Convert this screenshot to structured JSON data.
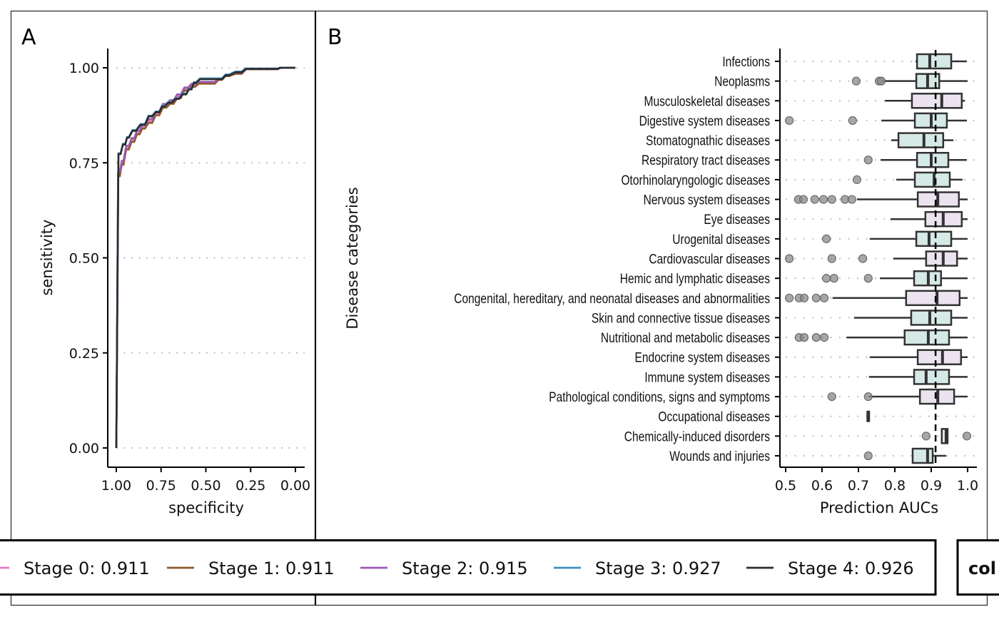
{
  "chart_data": [
    {
      "panel": "A",
      "type": "line",
      "title": "",
      "xlabel": "specificity",
      "ylabel": "sensitivity",
      "xlim": [
        1.0,
        0.0
      ],
      "ylim": [
        0.0,
        1.0
      ],
      "x_reversed": true,
      "xticks": [
        "1.00",
        "0.75",
        "0.50",
        "0.25",
        "0.00"
      ],
      "xtick_values": [
        1.0,
        0.75,
        0.5,
        0.25,
        0.0
      ],
      "yticks": [
        "0.00",
        "0.25",
        "0.50",
        "0.75",
        "1.00"
      ],
      "ytick_values": [
        0.0,
        0.25,
        0.5,
        0.75,
        1.0
      ],
      "grid": "horizontal-dotted",
      "series": [
        {
          "name": "Stage 0: 0.911",
          "color": "#e377c2",
          "specificity": [
            1.0,
            0.98,
            0.96,
            0.93,
            0.9,
            0.87,
            0.84,
            0.8,
            0.76,
            0.72,
            0.68,
            0.64,
            0.6,
            0.56,
            0.52,
            0.45,
            0.41,
            0.37,
            0.3,
            0.25,
            0.1,
            0.06,
            0.0
          ],
          "sensitivity": [
            0.0,
            0.72,
            0.75,
            0.79,
            0.81,
            0.83,
            0.845,
            0.86,
            0.88,
            0.9,
            0.91,
            0.925,
            0.945,
            0.955,
            0.96,
            0.96,
            0.97,
            0.98,
            0.985,
            0.996,
            0.996,
            1.0,
            1.0
          ]
        },
        {
          "name": "Stage 1: 0.911",
          "color": "#8c5a2b",
          "specificity": [
            1.0,
            0.98,
            0.96,
            0.93,
            0.9,
            0.87,
            0.84,
            0.8,
            0.76,
            0.72,
            0.68,
            0.64,
            0.6,
            0.56,
            0.52,
            0.45,
            0.41,
            0.37,
            0.3,
            0.25,
            0.1,
            0.06,
            0.0
          ],
          "sensitivity": [
            0.0,
            0.715,
            0.745,
            0.785,
            0.805,
            0.825,
            0.84,
            0.855,
            0.875,
            0.895,
            0.905,
            0.92,
            0.94,
            0.95,
            0.958,
            0.958,
            0.968,
            0.978,
            0.984,
            0.996,
            0.996,
            1.0,
            1.0
          ]
        },
        {
          "name": "Stage 2: 0.915",
          "color": "#9b59b6",
          "specificity": [
            1.0,
            0.98,
            0.96,
            0.93,
            0.9,
            0.87,
            0.84,
            0.8,
            0.76,
            0.72,
            0.68,
            0.64,
            0.6,
            0.56,
            0.52,
            0.45,
            0.41,
            0.37,
            0.3,
            0.25,
            0.1,
            0.06,
            0.0
          ],
          "sensitivity": [
            0.0,
            0.725,
            0.755,
            0.795,
            0.815,
            0.835,
            0.85,
            0.865,
            0.885,
            0.905,
            0.915,
            0.93,
            0.948,
            0.958,
            0.963,
            0.963,
            0.972,
            0.982,
            0.987,
            0.997,
            0.997,
            1.0,
            1.0
          ]
        },
        {
          "name": "Stage 3: 0.927",
          "color": "#3a8fbf",
          "specificity": [
            1.0,
            0.976,
            0.95,
            0.93,
            0.89,
            0.84,
            0.8,
            0.76,
            0.73,
            0.69,
            0.65,
            0.61,
            0.58,
            0.555,
            0.51,
            0.41,
            0.37,
            0.3,
            0.255,
            0.1,
            0.075,
            0.0
          ],
          "sensitivity": [
            0.0,
            0.775,
            0.8,
            0.818,
            0.836,
            0.852,
            0.874,
            0.885,
            0.9,
            0.91,
            0.92,
            0.932,
            0.945,
            0.962,
            0.972,
            0.972,
            0.982,
            0.99,
            0.998,
            0.998,
            1.0,
            1.0
          ]
        },
        {
          "name": "Stage 4: 0.926",
          "color": "#2b2b2b",
          "specificity": [
            1.0,
            0.976,
            0.95,
            0.93,
            0.89,
            0.84,
            0.8,
            0.76,
            0.73,
            0.69,
            0.65,
            0.61,
            0.58,
            0.555,
            0.51,
            0.41,
            0.37,
            0.3,
            0.255,
            0.1,
            0.075,
            0.0
          ],
          "sensitivity": [
            0.0,
            0.773,
            0.798,
            0.816,
            0.834,
            0.85,
            0.872,
            0.883,
            0.898,
            0.908,
            0.918,
            0.93,
            0.943,
            0.96,
            0.97,
            0.97,
            0.98,
            0.988,
            0.997,
            0.997,
            1.0,
            1.0
          ]
        }
      ]
    },
    {
      "panel": "B",
      "type": "boxplot",
      "title": "",
      "xlabel": "Prediction AUCs",
      "ylabel": "Disease categories",
      "xlim": [
        0.5,
        1.0
      ],
      "xticks": [
        "0.5",
        "0.6",
        "0.7",
        "0.8",
        "0.9",
        "1.0"
      ],
      "xtick_values": [
        0.5,
        0.6,
        0.7,
        0.8,
        0.9,
        1.0
      ],
      "reference_line": 0.912,
      "grid": "horizontal-dotted",
      "fill_colors": {
        "teal": "#d5e9e6",
        "lavender": "#ece3f1"
      },
      "categories": [
        {
          "name": "Infections",
          "fill": "teal",
          "whisker_low": 0.857,
          "q1": 0.861,
          "median": 0.896,
          "q3": 0.955,
          "whisker_high": 0.998,
          "outliers": []
        },
        {
          "name": "Neoplasms",
          "fill": "teal",
          "whisker_low": 0.769,
          "q1": 0.859,
          "median": 0.89,
          "q3": 0.922,
          "whisker_high": 1.0,
          "outliers": [
            0.694,
            0.757,
            0.763
          ]
        },
        {
          "name": "Musculoskeletal diseases",
          "fill": "lavender",
          "whisker_low": 0.773,
          "q1": 0.847,
          "median": 0.929,
          "q3": 0.984,
          "whisker_high": 0.992,
          "outliers": []
        },
        {
          "name": "Digestive system diseases",
          "fill": "teal",
          "whisker_low": 0.763,
          "q1": 0.855,
          "median": 0.9,
          "q3": 0.943,
          "whisker_high": 0.998,
          "outliers": [
            0.51,
            0.684
          ]
        },
        {
          "name": "Stomatognathic diseases",
          "fill": "teal",
          "whisker_low": 0.79,
          "q1": 0.81,
          "median": 0.88,
          "q3": 0.933,
          "whisker_high": 0.961,
          "outliers": []
        },
        {
          "name": "Respiratory tract diseases",
          "fill": "teal",
          "whisker_low": 0.761,
          "q1": 0.861,
          "median": 0.9,
          "q3": 0.947,
          "whisker_high": 0.998,
          "outliers": [
            0.727
          ]
        },
        {
          "name": "Otorhinolaryngologic diseases",
          "fill": "teal",
          "whisker_low": 0.804,
          "q1": 0.855,
          "median": 0.908,
          "q3": 0.951,
          "whisker_high": 0.986,
          "outliers": [
            0.696
          ]
        },
        {
          "name": "Nervous system diseases",
          "fill": "lavender",
          "whisker_low": 0.696,
          "q1": 0.863,
          "median": 0.918,
          "q3": 0.976,
          "whisker_high": 1.0,
          "outliers": [
            0.535,
            0.549,
            0.58,
            0.604,
            0.627,
            0.663,
            0.682
          ]
        },
        {
          "name": "Eye diseases",
          "fill": "lavender",
          "whisker_low": 0.788,
          "q1": 0.884,
          "median": 0.933,
          "q3": 0.984,
          "whisker_high": 1.0,
          "outliers": []
        },
        {
          "name": "Urogenital diseases",
          "fill": "teal",
          "whisker_low": 0.731,
          "q1": 0.859,
          "median": 0.894,
          "q3": 0.955,
          "whisker_high": 1.0,
          "outliers": [
            0.612
          ]
        },
        {
          "name": "Cardiovascular diseases",
          "fill": "lavender",
          "whisker_low": 0.796,
          "q1": 0.886,
          "median": 0.933,
          "q3": 0.971,
          "whisker_high": 1.0,
          "outliers": [
            0.51,
            0.627,
            0.712
          ]
        },
        {
          "name": "Hemic and lymphatic diseases",
          "fill": "teal",
          "whisker_low": 0.759,
          "q1": 0.853,
          "median": 0.892,
          "q3": 0.927,
          "whisker_high": 1.0,
          "outliers": [
            0.612,
            0.633,
            0.727
          ]
        },
        {
          "name": "Congenital, hereditary, and neonatal diseases and abnormalities",
          "fill": "lavender",
          "whisker_low": 0.629,
          "q1": 0.831,
          "median": 0.916,
          "q3": 0.978,
          "whisker_high": 1.0,
          "outliers": [
            0.51,
            0.537,
            0.551,
            0.584,
            0.606
          ]
        },
        {
          "name": "Skin and connective tissue diseases",
          "fill": "teal",
          "whisker_low": 0.688,
          "q1": 0.845,
          "median": 0.896,
          "q3": 0.955,
          "whisker_high": 1.0,
          "outliers": []
        },
        {
          "name": "Nutritional and metabolic diseases",
          "fill": "teal",
          "whisker_low": 0.667,
          "q1": 0.827,
          "median": 0.892,
          "q3": 0.949,
          "whisker_high": 1.0,
          "outliers": [
            0.537,
            0.551,
            0.584,
            0.606
          ]
        },
        {
          "name": "Endocrine system diseases",
          "fill": "lavender",
          "whisker_low": 0.731,
          "q1": 0.863,
          "median": 0.931,
          "q3": 0.982,
          "whisker_high": 1.0,
          "outliers": []
        },
        {
          "name": "Immune system diseases",
          "fill": "teal",
          "whisker_low": 0.729,
          "q1": 0.853,
          "median": 0.886,
          "q3": 0.949,
          "whisker_high": 1.0,
          "outliers": []
        },
        {
          "name": "Pathological conditions, signs and symptoms",
          "fill": "lavender",
          "whisker_low": 0.727,
          "q1": 0.869,
          "median": 0.918,
          "q3": 0.963,
          "whisker_high": 1.0,
          "outliers": [
            0.627,
            0.727
          ]
        },
        {
          "name": "Occupational diseases",
          "fill": "lavender",
          "whisker_low": 0.727,
          "q1": 0.727,
          "median": 0.727,
          "q3": 0.727,
          "whisker_high": 0.727,
          "outliers": []
        },
        {
          "name": "Chemically-induced disorders",
          "fill": "lavender",
          "whisker_low": 0.929,
          "q1": 0.929,
          "median": 0.941,
          "q3": 0.945,
          "whisker_high": 0.945,
          "outliers": [
            0.886,
            0.998
          ]
        },
        {
          "name": "Wounds and injuries",
          "fill": "teal",
          "whisker_low": 0.849,
          "q1": 0.849,
          "median": 0.89,
          "q3": 0.904,
          "whisker_high": 0.941,
          "outliers": [
            0.727
          ]
        }
      ]
    }
  ],
  "panels": {
    "a_tag": "A",
    "b_tag": "B"
  },
  "legend": {
    "items": [
      {
        "label": "Stage 0: 0.911",
        "color": "#e377c2"
      },
      {
        "label": "Stage 1: 0.911",
        "color": "#8c5a2b"
      },
      {
        "label": "Stage 2: 0.915",
        "color": "#9b59b6"
      },
      {
        "label": "Stage 3: 0.927",
        "color": "#3a8fbf"
      },
      {
        "label": "Stage 4: 0.926",
        "color": "#2b2b2b"
      }
    ],
    "second_legend_text": "col"
  }
}
